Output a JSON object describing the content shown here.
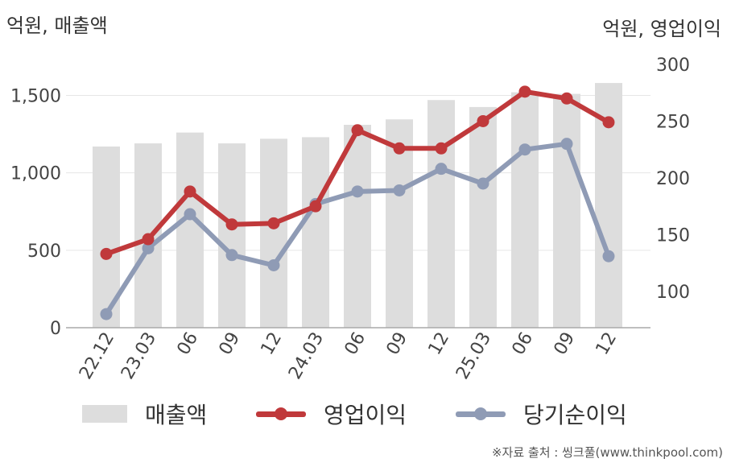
{
  "units": {
    "left": "억원, 매출액",
    "right": "억원, 영업이익"
  },
  "source": "※자료 출처 : 씽크풀(www.thinkpool.com)",
  "chart_data": {
    "type": "bar+line",
    "categories": [
      "22.12",
      "23.03",
      "06",
      "09",
      "12",
      "24.03",
      "06",
      "09",
      "12",
      "25.03",
      "06",
      "09",
      "12"
    ],
    "left_axis": {
      "range": [
        0,
        1700
      ],
      "ticks": [
        0,
        500,
        1000,
        1500
      ],
      "tick_labels": [
        "0",
        "500",
        "1,000",
        "1,500"
      ]
    },
    "right_axis": {
      "range": [
        68,
        300
      ],
      "ticks": [
        100,
        150,
        200,
        250,
        300
      ],
      "tick_labels": [
        "100",
        "150",
        "200",
        "250",
        "300"
      ]
    },
    "series": [
      {
        "name": "매출액",
        "kind": "bar",
        "axis": "left",
        "color": "#dddddd",
        "values": [
          1170,
          1190,
          1260,
          1190,
          1220,
          1230,
          1310,
          1345,
          1470,
          1425,
          1520,
          1510,
          1580
        ]
      },
      {
        "name": "영업이익",
        "kind": "line",
        "axis": "right",
        "color": "#c0393b",
        "values": [
          133,
          146,
          188,
          159,
          160,
          175,
          242,
          226,
          226,
          250,
          276,
          270,
          249
        ]
      },
      {
        "name": "당기순이익",
        "kind": "line",
        "axis": "right",
        "color": "#8f9bb5",
        "values": [
          80,
          138,
          168,
          132,
          123,
          177,
          188,
          189,
          208,
          195,
          225,
          230,
          131
        ]
      }
    ],
    "grid": true,
    "legend_position": "bottom"
  }
}
